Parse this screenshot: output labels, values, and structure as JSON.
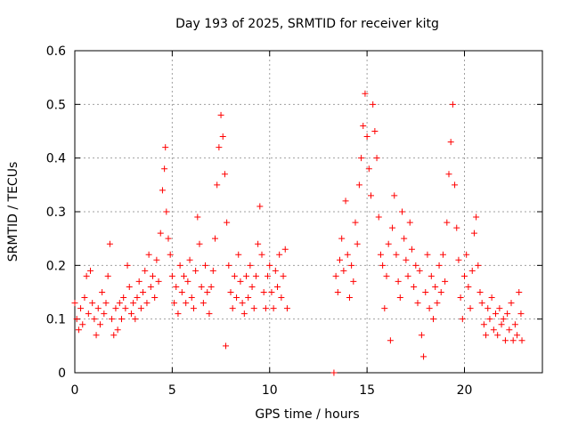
{
  "chart_data": {
    "type": "scatter",
    "title": "Day 193 of 2025, SRMTID for receiver kitg",
    "xlabel": "GPS time / hours",
    "ylabel": "SRMTID / TECUs",
    "xlim": [
      0,
      24
    ],
    "ylim": [
      0,
      0.6
    ],
    "xticks": [
      0,
      5,
      10,
      15,
      20
    ],
    "xtick_labels": [
      "0",
      "5",
      "10",
      "15",
      "20"
    ],
    "yticks": [
      0,
      0.1,
      0.2,
      0.3,
      0.4,
      0.5,
      0.6
    ],
    "ytick_labels": [
      "0",
      "0.1",
      "0.2",
      "0.3",
      "0.4",
      "0.5",
      "0.6"
    ],
    "grid": true,
    "marker": "plus",
    "color": "#ff0000",
    "series": [
      {
        "name": "SRMTID",
        "points": [
          [
            0.0,
            0.13
          ],
          [
            0.1,
            0.1
          ],
          [
            0.2,
            0.08
          ],
          [
            0.3,
            0.12
          ],
          [
            0.4,
            0.09
          ],
          [
            0.5,
            0.14
          ],
          [
            0.6,
            0.18
          ],
          [
            0.7,
            0.11
          ],
          [
            0.8,
            0.19
          ],
          [
            0.9,
            0.13
          ],
          [
            1.0,
            0.1
          ],
          [
            1.1,
            0.07
          ],
          [
            1.2,
            0.12
          ],
          [
            1.3,
            0.09
          ],
          [
            1.4,
            0.15
          ],
          [
            1.5,
            0.11
          ],
          [
            1.6,
            0.13
          ],
          [
            1.7,
            0.18
          ],
          [
            1.8,
            0.24
          ],
          [
            1.9,
            0.1
          ],
          [
            2.0,
            0.07
          ],
          [
            2.1,
            0.12
          ],
          [
            2.2,
            0.08
          ],
          [
            2.3,
            0.13
          ],
          [
            2.4,
            0.1
          ],
          [
            2.5,
            0.14
          ],
          [
            2.6,
            0.12
          ],
          [
            2.7,
            0.2
          ],
          [
            2.8,
            0.16
          ],
          [
            2.9,
            0.11
          ],
          [
            3.0,
            0.13
          ],
          [
            3.1,
            0.1
          ],
          [
            3.2,
            0.14
          ],
          [
            3.3,
            0.17
          ],
          [
            3.4,
            0.12
          ],
          [
            3.5,
            0.15
          ],
          [
            3.6,
            0.19
          ],
          [
            3.7,
            0.13
          ],
          [
            3.8,
            0.22
          ],
          [
            3.9,
            0.16
          ],
          [
            4.0,
            0.18
          ],
          [
            4.1,
            0.14
          ],
          [
            4.2,
            0.21
          ],
          [
            4.3,
            0.17
          ],
          [
            4.4,
            0.26
          ],
          [
            4.5,
            0.34
          ],
          [
            4.6,
            0.38
          ],
          [
            4.65,
            0.42
          ],
          [
            4.7,
            0.3
          ],
          [
            4.8,
            0.25
          ],
          [
            4.9,
            0.22
          ],
          [
            5.0,
            0.18
          ],
          [
            5.1,
            0.13
          ],
          [
            5.2,
            0.16
          ],
          [
            5.3,
            0.11
          ],
          [
            5.4,
            0.2
          ],
          [
            5.5,
            0.15
          ],
          [
            5.6,
            0.18
          ],
          [
            5.7,
            0.13
          ],
          [
            5.8,
            0.17
          ],
          [
            5.9,
            0.21
          ],
          [
            6.0,
            0.14
          ],
          [
            6.1,
            0.12
          ],
          [
            6.2,
            0.19
          ],
          [
            6.3,
            0.29
          ],
          [
            6.4,
            0.24
          ],
          [
            6.5,
            0.16
          ],
          [
            6.6,
            0.13
          ],
          [
            6.7,
            0.2
          ],
          [
            6.8,
            0.15
          ],
          [
            6.9,
            0.11
          ],
          [
            7.0,
            0.16
          ],
          [
            7.1,
            0.19
          ],
          [
            7.2,
            0.25
          ],
          [
            7.3,
            0.35
          ],
          [
            7.4,
            0.42
          ],
          [
            7.5,
            0.48
          ],
          [
            7.6,
            0.44
          ],
          [
            7.7,
            0.37
          ],
          [
            7.75,
            0.05
          ],
          [
            7.8,
            0.28
          ],
          [
            7.9,
            0.2
          ],
          [
            8.0,
            0.15
          ],
          [
            8.1,
            0.12
          ],
          [
            8.2,
            0.18
          ],
          [
            8.3,
            0.14
          ],
          [
            8.4,
            0.22
          ],
          [
            8.5,
            0.17
          ],
          [
            8.6,
            0.13
          ],
          [
            8.7,
            0.11
          ],
          [
            8.8,
            0.18
          ],
          [
            8.9,
            0.14
          ],
          [
            9.0,
            0.2
          ],
          [
            9.1,
            0.16
          ],
          [
            9.2,
            0.12
          ],
          [
            9.3,
            0.18
          ],
          [
            9.4,
            0.24
          ],
          [
            9.5,
            0.31
          ],
          [
            9.6,
            0.22
          ],
          [
            9.7,
            0.15
          ],
          [
            9.8,
            0.12
          ],
          [
            9.9,
            0.18
          ],
          [
            10.0,
            0.2
          ],
          [
            10.1,
            0.15
          ],
          [
            10.2,
            0.12
          ],
          [
            10.3,
            0.19
          ],
          [
            10.4,
            0.16
          ],
          [
            10.5,
            0.22
          ],
          [
            10.6,
            0.14
          ],
          [
            10.7,
            0.18
          ],
          [
            10.8,
            0.23
          ],
          [
            10.9,
            0.12
          ],
          [
            13.3,
            0.0
          ],
          [
            13.4,
            0.18
          ],
          [
            13.5,
            0.15
          ],
          [
            13.6,
            0.21
          ],
          [
            13.7,
            0.25
          ],
          [
            13.8,
            0.19
          ],
          [
            13.9,
            0.32
          ],
          [
            14.0,
            0.22
          ],
          [
            14.1,
            0.14
          ],
          [
            14.2,
            0.2
          ],
          [
            14.3,
            0.17
          ],
          [
            14.4,
            0.28
          ],
          [
            14.5,
            0.24
          ],
          [
            14.6,
            0.35
          ],
          [
            14.7,
            0.4
          ],
          [
            14.8,
            0.46
          ],
          [
            14.9,
            0.52
          ],
          [
            15.0,
            0.44
          ],
          [
            15.1,
            0.38
          ],
          [
            15.2,
            0.33
          ],
          [
            15.3,
            0.5
          ],
          [
            15.4,
            0.45
          ],
          [
            15.5,
            0.4
          ],
          [
            15.6,
            0.29
          ],
          [
            15.7,
            0.22
          ],
          [
            15.8,
            0.2
          ],
          [
            15.9,
            0.12
          ],
          [
            16.0,
            0.18
          ],
          [
            16.1,
            0.24
          ],
          [
            16.2,
            0.06
          ],
          [
            16.3,
            0.27
          ],
          [
            16.4,
            0.33
          ],
          [
            16.5,
            0.22
          ],
          [
            16.6,
            0.17
          ],
          [
            16.7,
            0.14
          ],
          [
            16.8,
            0.3
          ],
          [
            16.9,
            0.25
          ],
          [
            17.0,
            0.21
          ],
          [
            17.1,
            0.18
          ],
          [
            17.2,
            0.28
          ],
          [
            17.3,
            0.23
          ],
          [
            17.4,
            0.16
          ],
          [
            17.5,
            0.2
          ],
          [
            17.6,
            0.13
          ],
          [
            17.7,
            0.19
          ],
          [
            17.8,
            0.07
          ],
          [
            17.9,
            0.03
          ],
          [
            18.0,
            0.15
          ],
          [
            18.1,
            0.22
          ],
          [
            18.2,
            0.12
          ],
          [
            18.3,
            0.18
          ],
          [
            18.4,
            0.1
          ],
          [
            18.5,
            0.16
          ],
          [
            18.6,
            0.13
          ],
          [
            18.7,
            0.2
          ],
          [
            18.8,
            0.15
          ],
          [
            18.9,
            0.22
          ],
          [
            19.0,
            0.17
          ],
          [
            19.1,
            0.28
          ],
          [
            19.2,
            0.37
          ],
          [
            19.3,
            0.43
          ],
          [
            19.4,
            0.5
          ],
          [
            19.5,
            0.35
          ],
          [
            19.6,
            0.27
          ],
          [
            19.7,
            0.21
          ],
          [
            19.8,
            0.14
          ],
          [
            19.9,
            0.1
          ],
          [
            20.0,
            0.18
          ],
          [
            20.1,
            0.22
          ],
          [
            20.2,
            0.16
          ],
          [
            20.3,
            0.12
          ],
          [
            20.4,
            0.19
          ],
          [
            20.5,
            0.26
          ],
          [
            20.6,
            0.29
          ],
          [
            20.7,
            0.2
          ],
          [
            20.8,
            0.15
          ],
          [
            20.9,
            0.13
          ],
          [
            21.0,
            0.09
          ],
          [
            21.1,
            0.07
          ],
          [
            21.2,
            0.12
          ],
          [
            21.3,
            0.1
          ],
          [
            21.4,
            0.14
          ],
          [
            21.5,
            0.08
          ],
          [
            21.6,
            0.11
          ],
          [
            21.7,
            0.07
          ],
          [
            21.8,
            0.12
          ],
          [
            21.9,
            0.09
          ],
          [
            22.0,
            0.1
          ],
          [
            22.1,
            0.06
          ],
          [
            22.2,
            0.11
          ],
          [
            22.3,
            0.08
          ],
          [
            22.4,
            0.13
          ],
          [
            22.5,
            0.06
          ],
          [
            22.6,
            0.09
          ],
          [
            22.7,
            0.07
          ],
          [
            22.8,
            0.15
          ],
          [
            22.9,
            0.11
          ],
          [
            22.95,
            0.06
          ]
        ]
      }
    ]
  }
}
